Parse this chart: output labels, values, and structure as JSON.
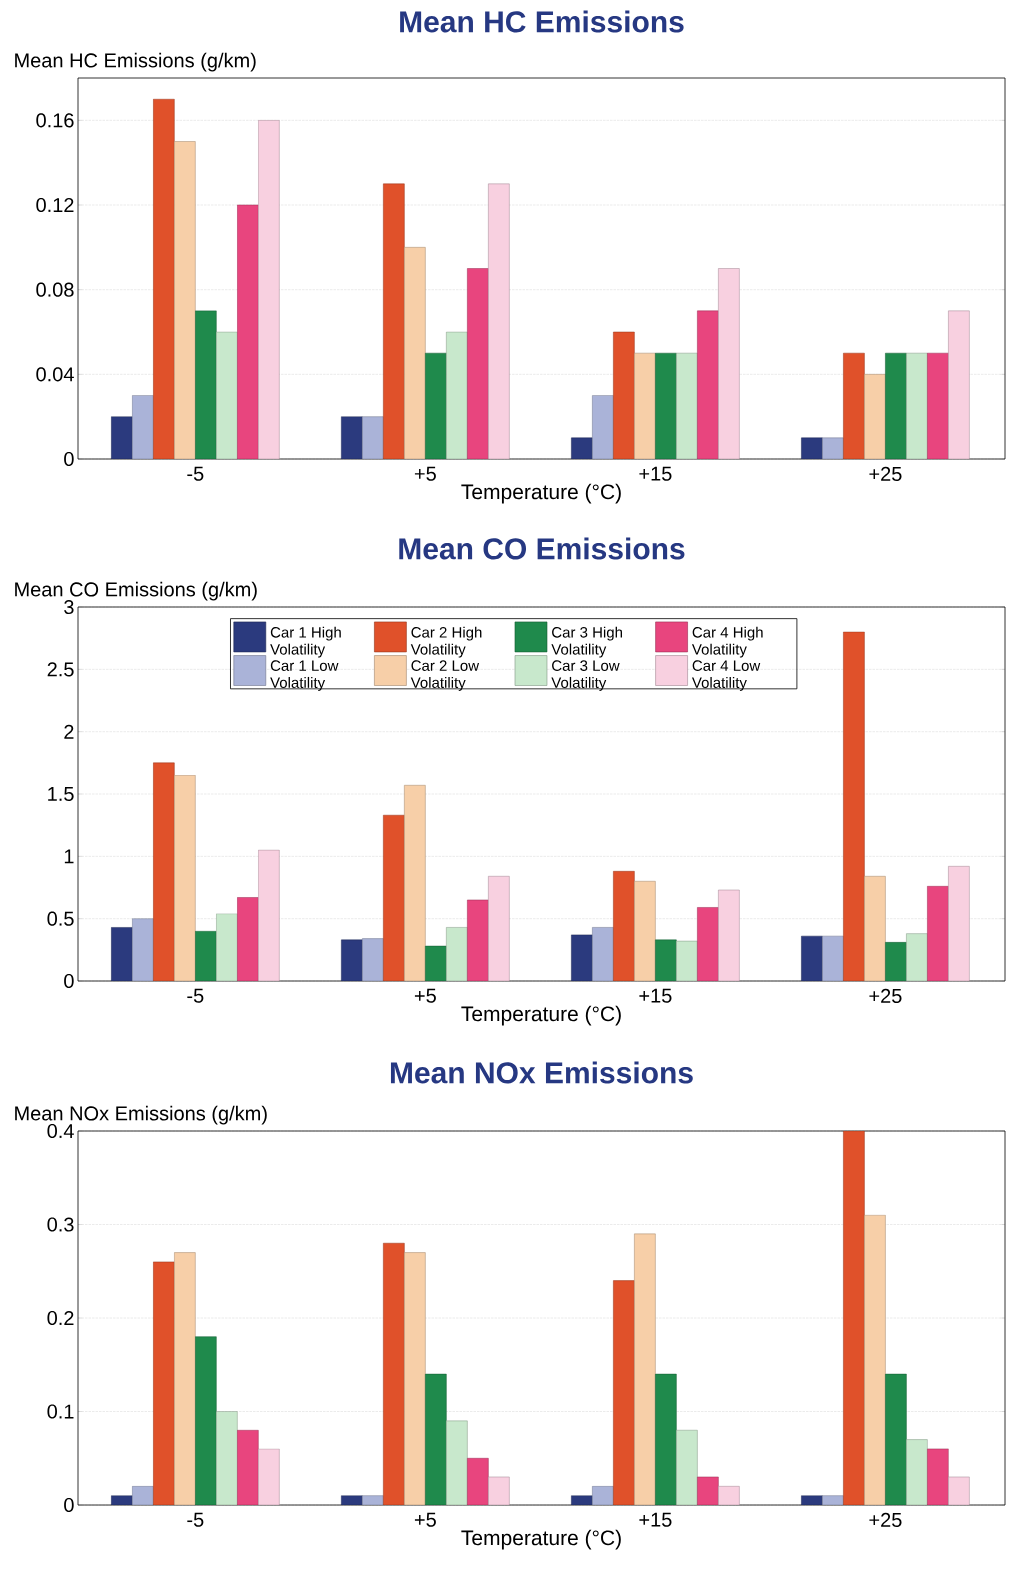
{
  "chart_data": [
    {
      "type": "bar",
      "title": "Mean HC Emissions",
      "ylabel": "Mean HC Emissions (g/km)",
      "xlabel": "Temperature (°C)",
      "categories": [
        "-5",
        "+5",
        "+15",
        "+25"
      ],
      "ylim": [
        0,
        0.18
      ],
      "yticks": [
        0,
        0.04,
        0.08,
        0.12,
        0.16
      ],
      "grid": "y",
      "series": [
        {
          "color": "#2b3a7e",
          "values": [
            0.02,
            0.02,
            0.01,
            0.01
          ]
        },
        {
          "color": "#aab3d8",
          "values": [
            0.03,
            0.02,
            0.03,
            0.01
          ]
        },
        {
          "color": "#e0512a",
          "values": [
            0.17,
            0.13,
            0.06,
            0.05
          ]
        },
        {
          "color": "#f7cfa8",
          "values": [
            0.15,
            0.1,
            0.05,
            0.04
          ]
        },
        {
          "color": "#1f8a4c",
          "values": [
            0.07,
            0.05,
            0.05,
            0.05
          ]
        },
        {
          "color": "#c8e8cc",
          "values": [
            0.06,
            0.06,
            0.05,
            0.05
          ]
        },
        {
          "color": "#e8457e",
          "values": [
            0.12,
            0.09,
            0.07,
            0.05
          ]
        },
        {
          "color": "#f8d0e0",
          "values": [
            0.16,
            0.13,
            0.09,
            0.07
          ]
        }
      ]
    },
    {
      "type": "bar",
      "title": "Mean CO Emissions",
      "ylabel": "Mean CO Emissions (g/km)",
      "xlabel": "Temperature (°C)",
      "categories": [
        "-5",
        "+5",
        "+15",
        "+25"
      ],
      "ylim": [
        0,
        3
      ],
      "yticks": [
        0,
        0.5,
        1,
        1.5,
        2,
        2.5,
        3
      ],
      "grid": "y",
      "legend": "top",
      "series": [
        {
          "name": "Car 1 High Volatility",
          "color": "#2b3a7e",
          "values": [
            0.43,
            0.33,
            0.37,
            0.36
          ]
        },
        {
          "name": "Car 1 Low Volatility",
          "color": "#aab3d8",
          "values": [
            0.5,
            0.34,
            0.43,
            0.36
          ]
        },
        {
          "name": "Car 2 High Volatility",
          "color": "#e0512a",
          "values": [
            1.75,
            1.33,
            0.88,
            2.8
          ]
        },
        {
          "name": "Car 2 Low Volatility",
          "color": "#f7cfa8",
          "values": [
            1.65,
            1.57,
            0.8,
            0.84
          ]
        },
        {
          "name": "Car 3 High Volatility",
          "color": "#1f8a4c",
          "values": [
            0.4,
            0.28,
            0.33,
            0.31
          ]
        },
        {
          "name": "Car 3 Low Volatility",
          "color": "#c8e8cc",
          "values": [
            0.54,
            0.43,
            0.32,
            0.38
          ]
        },
        {
          "name": "Car 4 High Volatility",
          "color": "#e8457e",
          "values": [
            0.67,
            0.65,
            0.59,
            0.76
          ]
        },
        {
          "name": "Car 4 Low Volatility",
          "color": "#f8d0e0",
          "values": [
            1.05,
            0.84,
            0.73,
            0.92
          ]
        }
      ]
    },
    {
      "type": "bar",
      "title": "Mean NOx Emissions",
      "ylabel": "Mean NOx Emissions (g/km)",
      "xlabel": "Temperature (°C)",
      "categories": [
        "-5",
        "+5",
        "+15",
        "+25"
      ],
      "ylim": [
        0,
        0.4
      ],
      "yticks": [
        0,
        0.1,
        0.2,
        0.3,
        0.4
      ],
      "grid": "y",
      "series": [
        {
          "color": "#2b3a7e",
          "values": [
            0.01,
            0.01,
            0.01,
            0.01
          ]
        },
        {
          "color": "#aab3d8",
          "values": [
            0.02,
            0.01,
            0.02,
            0.01
          ]
        },
        {
          "color": "#e0512a",
          "values": [
            0.26,
            0.28,
            0.24,
            0.4
          ]
        },
        {
          "color": "#f7cfa8",
          "values": [
            0.27,
            0.27,
            0.29,
            0.31
          ]
        },
        {
          "color": "#1f8a4c",
          "values": [
            0.18,
            0.14,
            0.14,
            0.14
          ]
        },
        {
          "color": "#c8e8cc",
          "values": [
            0.1,
            0.09,
            0.08,
            0.07
          ]
        },
        {
          "color": "#e8457e",
          "values": [
            0.08,
            0.05,
            0.03,
            0.06
          ]
        },
        {
          "color": "#f8d0e0",
          "values": [
            0.06,
            0.03,
            0.02,
            0.03
          ]
        }
      ]
    }
  ]
}
